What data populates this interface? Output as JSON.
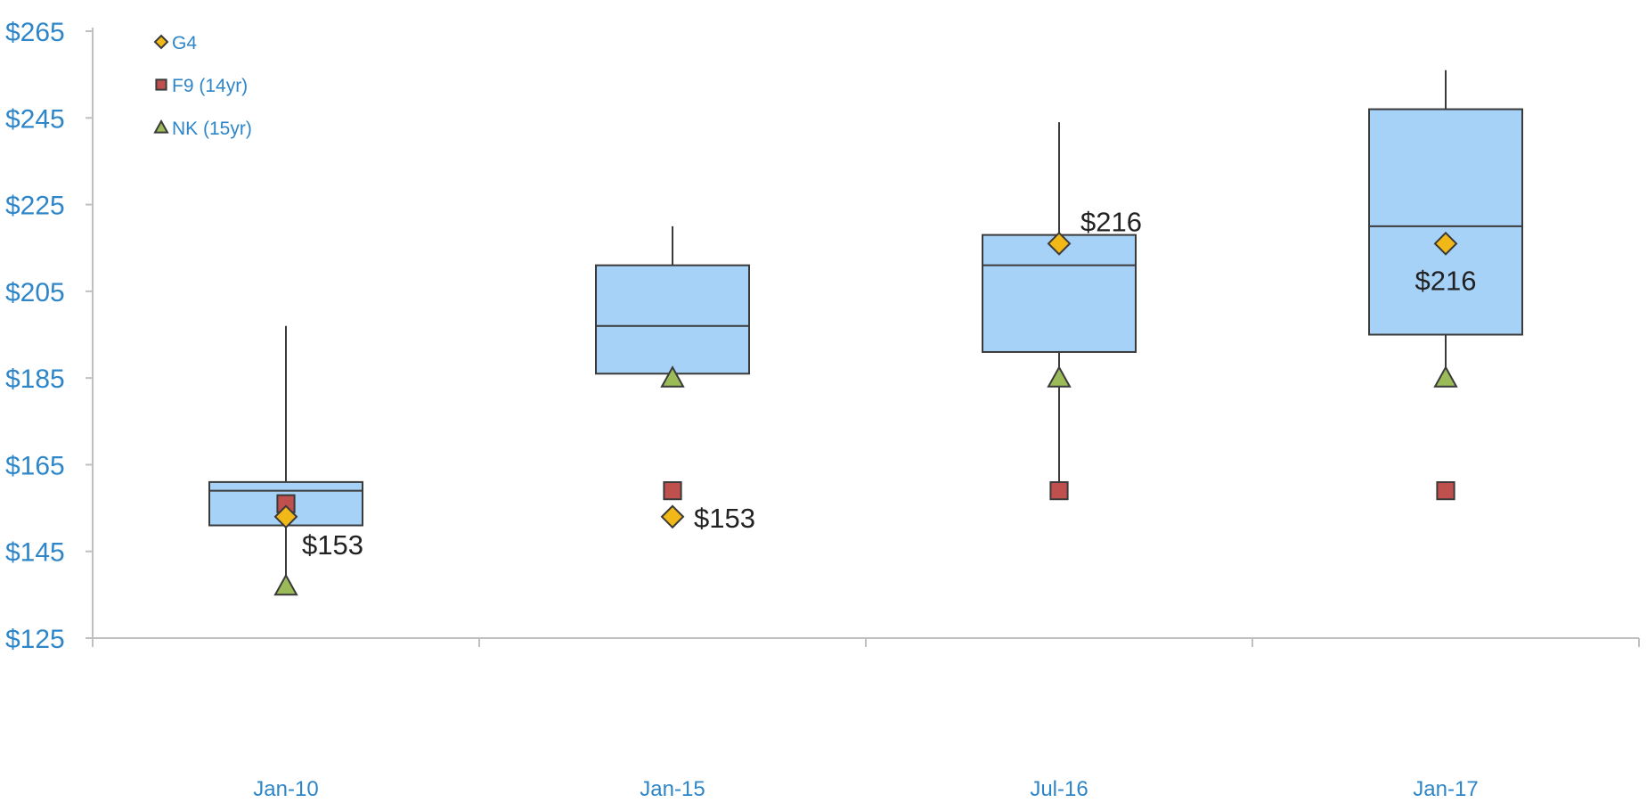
{
  "chart_data": {
    "type": "box",
    "categories": [
      "Jan-10",
      "Jan-15",
      "Jul-16",
      "Jan-17"
    ],
    "y_ticks": [
      "$125",
      "$145",
      "$165",
      "$185",
      "$205",
      "$225",
      "$245",
      "$265"
    ],
    "ylim": [
      125,
      265
    ],
    "grid": false,
    "legend_position": "top-left",
    "boxes": [
      {
        "category": "Jan-10",
        "whisker_low": 137,
        "q1": 151,
        "median": 159,
        "q3": 161,
        "whisker_high": 197
      },
      {
        "category": "Jan-15",
        "whisker_low": 185,
        "q1": 186,
        "median": 197,
        "q3": 211,
        "whisker_high": 220
      },
      {
        "category": "Jul-16",
        "whisker_low": 159,
        "q1": 191,
        "median": 211,
        "q3": 218,
        "whisker_high": 244
      },
      {
        "category": "Jan-17",
        "whisker_low": 185,
        "q1": 195,
        "median": 220,
        "q3": 247,
        "whisker_high": 256
      }
    ],
    "series": [
      {
        "name": "G4",
        "marker": "diamond",
        "color": "#f2b817",
        "values": [
          153,
          153,
          216,
          216
        ]
      },
      {
        "name": "F9 (14yr)",
        "marker": "square",
        "color": "#c0504d",
        "values": [
          156,
          159,
          159,
          159
        ]
      },
      {
        "name": "NK (15yr)",
        "marker": "triangle",
        "color": "#9bbb59",
        "values": [
          137,
          185,
          185,
          185
        ]
      }
    ],
    "data_labels": [
      {
        "category": "Jan-10",
        "series": "G4",
        "text": "$153",
        "anchor": "below-right"
      },
      {
        "category": "Jan-15",
        "series": "G4",
        "text": "$153",
        "anchor": "right"
      },
      {
        "category": "Jul-16",
        "series": "G4",
        "text": "$216",
        "anchor": "above-right"
      },
      {
        "category": "Jan-17",
        "series": "G4",
        "text": "$216",
        "anchor": "below"
      }
    ],
    "colors": {
      "box_fill": "#a6d2f8",
      "box_stroke": "#3a3a3a",
      "axis": "#c0c0c0",
      "tick_text": "#2e86c8",
      "label_text": "#222222"
    }
  }
}
